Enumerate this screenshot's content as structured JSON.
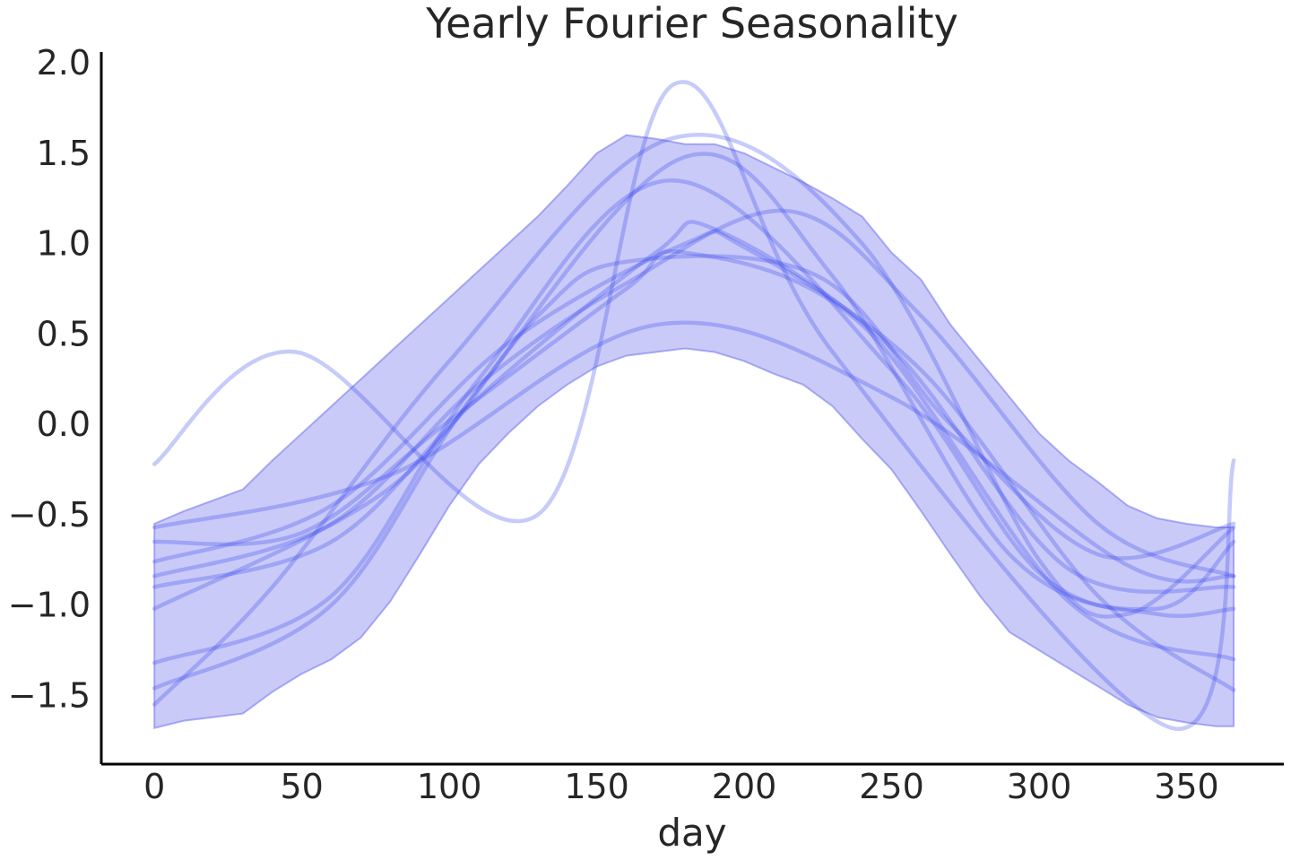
{
  "chart_data": {
    "type": "line",
    "title": "Yearly Fourier Seasonality",
    "xlabel": "day",
    "ylabel": "",
    "xlim": [
      -18,
      383
    ],
    "ylim": [
      -1.88,
      2.06
    ],
    "x_ticks": [
      {
        "value": 0,
        "label": "0"
      },
      {
        "value": 50,
        "label": "50"
      },
      {
        "value": 100,
        "label": "100"
      },
      {
        "value": 150,
        "label": "150"
      },
      {
        "value": 200,
        "label": "200"
      },
      {
        "value": 250,
        "label": "250"
      },
      {
        "value": 300,
        "label": "300"
      },
      {
        "value": 350,
        "label": "350"
      }
    ],
    "y_ticks": [
      {
        "value": -1.5,
        "label": "−1.5"
      },
      {
        "value": -1.0,
        "label": "−1.0"
      },
      {
        "value": -0.5,
        "label": "−0.5"
      },
      {
        "value": 0.0,
        "label": "0.0"
      },
      {
        "value": 0.5,
        "label": "0.5"
      },
      {
        "value": 1.0,
        "label": "1.0"
      },
      {
        "value": 1.5,
        "label": "1.5"
      },
      {
        "value": 2.0,
        "label": "2.0"
      }
    ],
    "grid": false,
    "colors": {
      "band_fill": "#6666ee",
      "band_opacity": 0.35,
      "line": "#3344ee",
      "line_opacity": 0.28
    },
    "band": {
      "x": [
        0,
        10,
        20,
        30,
        40,
        50,
        60,
        70,
        80,
        90,
        100,
        110,
        120,
        130,
        140,
        150,
        160,
        170,
        180,
        190,
        200,
        210,
        220,
        230,
        240,
        250,
        260,
        270,
        280,
        290,
        300,
        310,
        320,
        330,
        340,
        350,
        360,
        366
      ],
      "upper": [
        -0.55,
        -0.48,
        -0.42,
        -0.36,
        -0.2,
        -0.05,
        0.1,
        0.25,
        0.4,
        0.55,
        0.7,
        0.85,
        1.0,
        1.15,
        1.32,
        1.5,
        1.6,
        1.58,
        1.55,
        1.55,
        1.5,
        1.42,
        1.34,
        1.25,
        1.15,
        0.95,
        0.8,
        0.55,
        0.35,
        0.15,
        -0.05,
        -0.2,
        -0.32,
        -0.45,
        -0.52,
        -0.55,
        -0.57,
        -0.57
      ],
      "lower": [
        -1.68,
        -1.64,
        -1.62,
        -1.6,
        -1.48,
        -1.38,
        -1.3,
        -1.18,
        -0.98,
        -0.72,
        -0.45,
        -0.22,
        -0.05,
        0.1,
        0.22,
        0.32,
        0.38,
        0.4,
        0.42,
        0.4,
        0.35,
        0.28,
        0.22,
        0.1,
        -0.08,
        -0.25,
        -0.48,
        -0.72,
        -0.95,
        -1.15,
        -1.25,
        -1.35,
        -1.45,
        -1.55,
        -1.62,
        -1.65,
        -1.67,
        -1.67
      ]
    },
    "x_end": 366,
    "series": [
      {
        "values": [
          [
            0,
            -0.57
          ],
          [
            80,
            -0.28
          ],
          [
            170,
            0.55
          ],
          [
            250,
            0.15
          ],
          [
            330,
            -0.78
          ],
          [
            366,
            -0.84
          ]
        ]
      },
      {
        "values": [
          [
            0,
            -0.65
          ],
          [
            50,
            -0.6
          ],
          [
            100,
            0.02
          ],
          [
            160,
            0.75
          ],
          [
            180,
            0.95
          ],
          [
            240,
            0.55
          ],
          [
            310,
            -0.98
          ],
          [
            366,
            -1.3
          ]
        ]
      },
      {
        "values": [
          [
            0,
            -0.76
          ],
          [
            60,
            -0.45
          ],
          [
            120,
            0.45
          ],
          [
            180,
            1.0
          ],
          [
            200,
            0.98
          ],
          [
            260,
            0.3
          ],
          [
            320,
            -0.95
          ],
          [
            366,
            -1.47
          ]
        ]
      },
      {
        "values": [
          [
            0,
            -0.84
          ],
          [
            60,
            -0.55
          ],
          [
            110,
            0.22
          ],
          [
            160,
            0.78
          ],
          [
            215,
            1.18
          ],
          [
            260,
            0.6
          ],
          [
            320,
            -0.55
          ],
          [
            366,
            -0.84
          ]
        ]
      },
      {
        "values": [
          [
            0,
            -0.9
          ],
          [
            60,
            -0.65
          ],
          [
            110,
            0.15
          ],
          [
            170,
            0.95
          ],
          [
            190,
            1.08
          ],
          [
            250,
            0.42
          ],
          [
            310,
            -0.8
          ],
          [
            366,
            -0.9
          ]
        ]
      },
      {
        "values": [
          [
            0,
            -1.02
          ],
          [
            80,
            -0.35
          ],
          [
            130,
            0.6
          ],
          [
            160,
            0.9
          ],
          [
            225,
            0.82
          ],
          [
            270,
            0.0
          ],
          [
            320,
            -0.72
          ],
          [
            366,
            -0.55
          ]
        ]
      },
      {
        "values": [
          [
            0,
            -1.32
          ],
          [
            60,
            -0.95
          ],
          [
            110,
            0.25
          ],
          [
            175,
            1.35
          ],
          [
            250,
            0.3
          ],
          [
            300,
            -0.82
          ],
          [
            340,
            -1.05
          ],
          [
            366,
            -1.02
          ]
        ]
      },
      {
        "values": [
          [
            0,
            -1.46
          ],
          [
            60,
            -1.0
          ],
          [
            110,
            0.2
          ],
          [
            180,
            1.48
          ],
          [
            230,
            0.82
          ],
          [
            290,
            -0.72
          ],
          [
            340,
            -1.02
          ],
          [
            366,
            -0.65
          ]
        ]
      },
      {
        "values": [
          [
            0,
            -1.55
          ],
          [
            40,
            -0.9
          ],
          [
            100,
            0.35
          ],
          [
            175,
            1.58
          ],
          [
            240,
            1.0
          ],
          [
            300,
            -0.75
          ],
          [
            330,
            -1.05
          ],
          [
            366,
            -0.57
          ]
        ]
      },
      {
        "values": [
          [
            0,
            -0.22
          ],
          [
            48,
            0.4
          ],
          [
            130,
            -0.5
          ],
          [
            176,
            1.88
          ],
          [
            230,
            0.4
          ],
          [
            345,
            -1.68
          ],
          [
            366,
            -0.2
          ]
        ]
      }
    ]
  }
}
